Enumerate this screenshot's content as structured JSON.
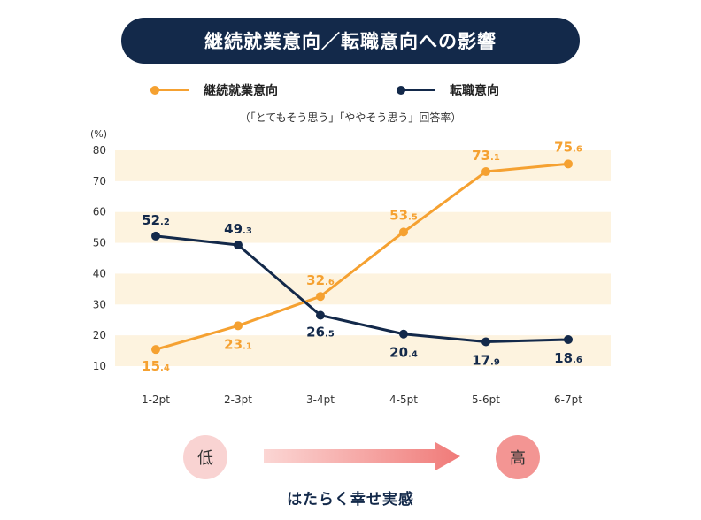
{
  "chart_data": {
    "type": "line",
    "title": "継続就業意向／転職意向への影響",
    "subtitle": "（「とてもそう思う」「ややそう思う」回答率）",
    "ylabel": "(%)",
    "categories": [
      "1-2pt",
      "2-3pt",
      "3-4pt",
      "4-5pt",
      "5-6pt",
      "6-7pt"
    ],
    "ylim": [
      10,
      80
    ],
    "yticks": [
      10,
      20,
      30,
      40,
      50,
      60,
      70,
      80
    ],
    "series": [
      {
        "name": "継続就業意向",
        "color": "#f5a131",
        "values": [
          15.4,
          23.1,
          32.6,
          53.5,
          73.1,
          75.6
        ],
        "labels": [
          [
            "15",
            ".4"
          ],
          [
            "23",
            ".1"
          ],
          [
            "32",
            ".6"
          ],
          [
            "53",
            ".5"
          ],
          [
            "73",
            ".1"
          ],
          [
            "75",
            ".6"
          ]
        ]
      },
      {
        "name": "転職意向",
        "color": "#13294a",
        "values": [
          52.2,
          49.3,
          26.5,
          20.4,
          17.9,
          18.6
        ],
        "labels": [
          [
            "52",
            ".2"
          ],
          [
            "49",
            ".3"
          ],
          [
            "26",
            ".5"
          ],
          [
            "20",
            ".4"
          ],
          [
            "17",
            ".9"
          ],
          [
            "18",
            ".6"
          ]
        ]
      }
    ],
    "band_color": "#fdf3df",
    "x_scale": {
      "low_label": "低",
      "high_label": "高",
      "caption": "はたらく幸せ実感"
    }
  }
}
